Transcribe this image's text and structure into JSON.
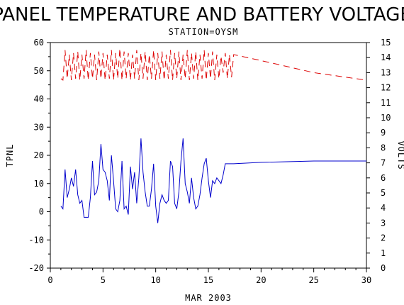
{
  "chart_data": {
    "type": "line",
    "title": "PANEL TEMPERATURE AND BATTERY VOLTAGE",
    "subtitle": "STATION=OYSM",
    "xlabel": "MAR 2003",
    "ylabel_left": "TPNL",
    "ylabel_right": "VOLTS",
    "xlim": [
      0,
      30
    ],
    "ylim_left": [
      -20,
      60
    ],
    "ylim_right": [
      0,
      15
    ],
    "x_ticks": [
      "0",
      "5",
      "10",
      "15",
      "20",
      "25",
      "30"
    ],
    "y_left_ticks": [
      "-20",
      "-10",
      "0",
      "10",
      "20",
      "30",
      "40",
      "50",
      "60"
    ],
    "y_right_ticks": [
      "0",
      "1",
      "2",
      "3",
      "4",
      "5",
      "6",
      "7",
      "8",
      "9",
      "10",
      "11",
      "12",
      "13",
      "14",
      "15"
    ],
    "series": [
      {
        "name": "TPNL",
        "axis": "left",
        "color": "#0000cc",
        "x": [
          1.0,
          1.2,
          1.4,
          1.6,
          1.8,
          2.0,
          2.2,
          2.4,
          2.6,
          2.8,
          3.0,
          3.2,
          3.4,
          3.6,
          3.8,
          4.0,
          4.2,
          4.4,
          4.6,
          4.8,
          5.0,
          5.2,
          5.4,
          5.6,
          5.8,
          6.0,
          6.2,
          6.4,
          6.6,
          6.8,
          7.0,
          7.2,
          7.4,
          7.6,
          7.8,
          8.0,
          8.2,
          8.4,
          8.6,
          8.8,
          9.0,
          9.2,
          9.4,
          9.6,
          9.8,
          10.0,
          10.2,
          10.4,
          10.6,
          10.8,
          11.0,
          11.2,
          11.4,
          11.6,
          11.8,
          12.0,
          12.2,
          12.4,
          12.6,
          12.8,
          13.0,
          13.2,
          13.4,
          13.6,
          13.8,
          14.0,
          14.2,
          14.4,
          14.6,
          14.8,
          15.0,
          15.2,
          15.4,
          15.6,
          15.8,
          16.0,
          16.2,
          16.4,
          16.6,
          16.8,
          17.0,
          17.2,
          17.4,
          20.0,
          25.0,
          30.0
        ],
        "values": [
          2,
          1,
          15,
          5,
          8,
          12,
          9,
          15,
          6,
          3,
          4,
          -2,
          -2,
          -2,
          5,
          18,
          6,
          7,
          11,
          24,
          15,
          14,
          11,
          4,
          20,
          11,
          1,
          0,
          4,
          18,
          1,
          2,
          -1,
          16,
          8,
          14,
          3,
          12,
          26,
          14,
          7,
          2,
          2,
          8,
          17,
          2,
          -4,
          3,
          6,
          4,
          3,
          4,
          18,
          16,
          3,
          1,
          7,
          18,
          26,
          10,
          7,
          3,
          12,
          5,
          1,
          2,
          6,
          12,
          17,
          19,
          11,
          5,
          11,
          10,
          12,
          11,
          10,
          13,
          17,
          17,
          17,
          17,
          17,
          17.5,
          18,
          18
        ]
      },
      {
        "name": "VOLTS",
        "axis": "right",
        "color": "#dd0000",
        "x": [
          1.0,
          1.2,
          1.4,
          1.6,
          1.8,
          2.0,
          2.2,
          2.4,
          2.6,
          2.8,
          3.0,
          3.2,
          3.4,
          3.6,
          3.8,
          4.0,
          4.2,
          4.4,
          4.6,
          4.8,
          5.0,
          5.2,
          5.4,
          5.6,
          5.8,
          6.0,
          6.2,
          6.4,
          6.6,
          6.8,
          7.0,
          7.2,
          7.4,
          7.6,
          7.8,
          8.0,
          8.2,
          8.4,
          8.6,
          8.8,
          9.0,
          9.2,
          9.4,
          9.6,
          9.8,
          10.0,
          10.2,
          10.4,
          10.6,
          10.8,
          11.0,
          11.2,
          11.4,
          11.6,
          11.8,
          12.0,
          12.2,
          12.4,
          12.6,
          12.8,
          13.0,
          13.2,
          13.4,
          13.6,
          13.8,
          14.0,
          14.2,
          14.4,
          14.6,
          14.8,
          15.0,
          15.2,
          15.4,
          15.6,
          15.8,
          16.0,
          16.2,
          16.4,
          16.6,
          16.8,
          17.0,
          17.2,
          17.4,
          20.0,
          25.0,
          30.0
        ],
        "values": [
          12.6,
          12.5,
          14.5,
          12.6,
          14.2,
          12.5,
          14.3,
          12.6,
          14.4,
          12.5,
          14.2,
          12.6,
          14.5,
          12.5,
          14.3,
          12.6,
          14.2,
          12.5,
          14.4,
          12.6,
          14.3,
          12.5,
          14.2,
          12.6,
          14.5,
          12.5,
          14.3,
          12.6,
          14.6,
          12.5,
          14.4,
          12.6,
          14.3,
          12.5,
          14.2,
          12.6,
          14.5,
          12.5,
          14.3,
          12.6,
          14.4,
          12.5,
          14.2,
          12.6,
          14.5,
          12.5,
          14.3,
          12.6,
          14.4,
          12.5,
          14.2,
          12.6,
          14.5,
          12.5,
          14.3,
          12.6,
          14.4,
          12.5,
          14.2,
          12.6,
          14.5,
          12.5,
          14.3,
          12.6,
          14.4,
          12.5,
          14.2,
          12.6,
          14.5,
          12.5,
          14.3,
          12.6,
          14.4,
          12.5,
          14.2,
          12.6,
          14.1,
          13.0,
          14.3,
          12.6,
          14.2,
          12.7,
          14.2,
          13.8,
          13.0,
          12.5
        ]
      }
    ]
  }
}
